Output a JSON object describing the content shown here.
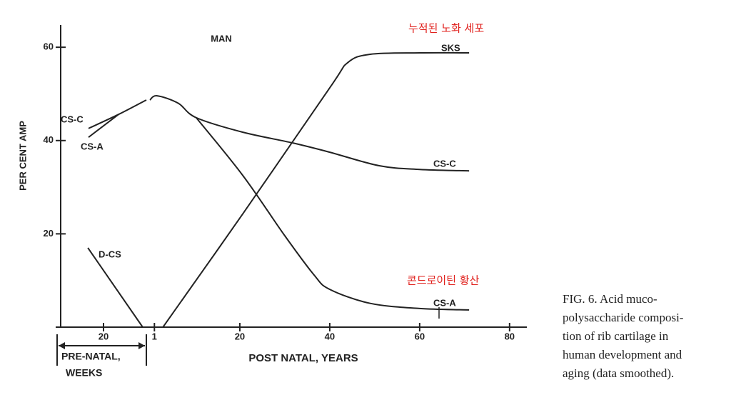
{
  "chart_data": {
    "type": "line",
    "title": "MAN",
    "y_label": "PER CENT AMP",
    "x_label": "POST NATAL, YEARS",
    "prenatal_label": [
      "PRE-NATAL,",
      "WEEKS"
    ],
    "ylim": [
      0,
      65
    ],
    "yticks": [
      20,
      40,
      60
    ],
    "prenatal_xlim": [
      0,
      40
    ],
    "prenatal_xticks": [
      20
    ],
    "xlim": [
      0,
      84
    ],
    "xticks": [
      1,
      20,
      40,
      60,
      80
    ],
    "color": "#222222",
    "series": [
      {
        "name": "CS-C",
        "prenatal": {
          "x": [
            13,
            27,
            40
          ],
          "values": [
            42.6,
            45.6,
            48.7
          ]
        },
        "postnatal": {
          "x": [
            0,
            1.6,
            6.3,
            10.3,
            20.6,
            31.7,
            40,
            51,
            60,
            71
          ],
          "values": [
            48.7,
            49.6,
            48,
            44.9,
            41.8,
            39.5,
            37.5,
            34.6,
            33.8,
            33.5
          ]
        }
      },
      {
        "name": "CS-A",
        "prenatal": {
          "x": [
            13,
            27
          ],
          "values": [
            40.7,
            45.6
          ]
        },
        "postnatal": {
          "x": [
            10.3,
            20.6,
            30,
            36.5,
            40,
            49,
            60,
            71
          ],
          "values": [
            44.9,
            32.6,
            19.6,
            11.2,
            8.1,
            5.1,
            4,
            3.7
          ]
        }
      },
      {
        "name": "SKS",
        "prenatal": {
          "x": [],
          "values": []
        },
        "postnatal": {
          "x": [
            2.9,
            20.6,
            40,
            44,
            49,
            60,
            71
          ],
          "values": [
            0,
            24.2,
            51.3,
            56.7,
            58.5,
            58.8,
            58.8
          ]
        }
      },
      {
        "name": "D-CS",
        "prenatal": {
          "x": [
            12.7,
            38.3
          ],
          "values": [
            17,
            0
          ]
        },
        "postnatal": {
          "x": [],
          "values": []
        }
      }
    ],
    "annotations": [
      "누적된 노화 세포",
      "콘드로이틴 황산"
    ],
    "caption": [
      "FIG. 6. Acid muco-",
      "polysaccharide composi-",
      "tion of rib cartilage in",
      "human development and",
      "aging (data smoothed)."
    ]
  }
}
